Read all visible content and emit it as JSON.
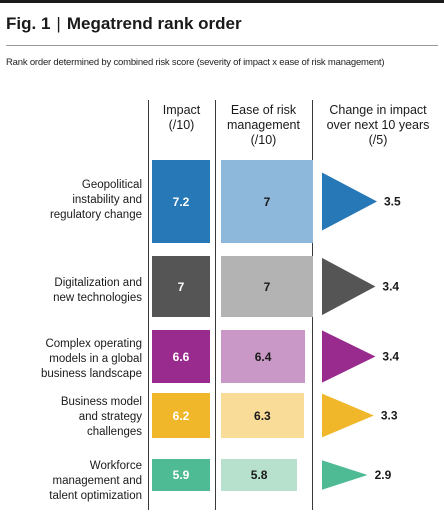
{
  "figure": {
    "number": "Fig. 1",
    "separator": "|",
    "title": "Megatrend rank order",
    "subtitle": "Rank order determined by combined risk score (severity of impact x ease of risk management)"
  },
  "columns": {
    "impact": [
      "Impact",
      "(/10)"
    ],
    "ease": [
      "Ease of risk",
      "management",
      "(/10)"
    ],
    "change": [
      "Change in impact",
      "over next 10 years",
      "(/5)"
    ]
  },
  "chart_data": {
    "type": "table",
    "categories": [
      "Geopolitical instability and regulatory change",
      "Digitalization and new technologies",
      "Complex operating models in a global business landscape",
      "Business model and strategy challenges",
      "Workforce management and talent optimization"
    ],
    "category_lines": [
      [
        "Geopolitical",
        "instability and",
        "regulatory change"
      ],
      [
        "Digitalization and",
        "new technologies"
      ],
      [
        "Complex operating",
        "models in a global",
        "business landscape"
      ],
      [
        "Business model",
        "and strategy",
        "challenges"
      ],
      [
        "Workforce",
        "management and",
        "talent optimization"
      ]
    ],
    "series": [
      {
        "name": "Impact (/10)",
        "values": [
          7.2,
          7,
          6.6,
          6.2,
          5.9
        ],
        "labels": [
          "7.2",
          "7",
          "6.6",
          "6.2",
          "5.9"
        ]
      },
      {
        "name": "Ease of risk management (/10)",
        "values": [
          7,
          7,
          6.4,
          6.3,
          5.8
        ],
        "labels": [
          "7",
          "7",
          "6.4",
          "6.3",
          "5.8"
        ]
      },
      {
        "name": "Change in impact over next 10 years (/5)",
        "values": [
          3.5,
          3.4,
          3.4,
          3.3,
          2.9
        ],
        "labels": [
          "3.5",
          "3.4",
          "3.4",
          "3.3",
          "2.9"
        ]
      }
    ],
    "colors": [
      {
        "strong": "#2678b6",
        "light": "#8db8dc",
        "change": "#2678b6"
      },
      {
        "strong": "#555556",
        "light": "#b3b3b3",
        "change": "#555556"
      },
      {
        "strong": "#992a8e",
        "light": "#c998c6",
        "change": "#992a8e"
      },
      {
        "strong": "#f1b72a",
        "light": "#f9dc98",
        "change": "#f1b72a"
      },
      {
        "strong": "#4fbb95",
        "light": "#b7e1cd",
        "change": "#4fbb95"
      }
    ],
    "text_colors": {
      "impact": "#ffffff",
      "ease": "#1a1a1a",
      "change": "#1a1a1a"
    }
  }
}
